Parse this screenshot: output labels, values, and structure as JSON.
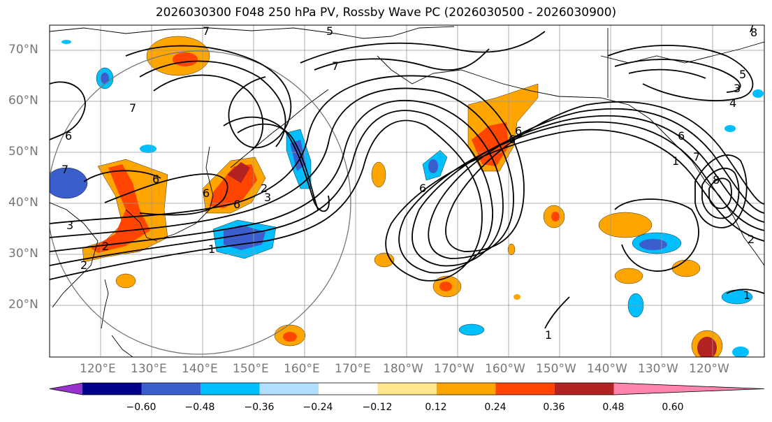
{
  "title": "2026030300 F048 250 hPa PV, Rossby Wave PC (2026030500 - 2026030900)",
  "lat_labels": [
    "70°N",
    "60°N",
    "50°N",
    "40°N",
    "30°N",
    "20°N"
  ],
  "lon_labels": [
    "120°E",
    "130°E",
    "140°E",
    "150°E",
    "160°E",
    "170°E",
    "180°W",
    "170°W",
    "160°W",
    "150°W",
    "140°W",
    "130°W",
    "120°W"
  ],
  "colorbar": {
    "colors": [
      "#9932cc",
      "#00008b",
      "#3a5fcd",
      "#00bfff",
      "#b2dfff",
      "#ffffff",
      "#ffe68a",
      "#ffa500",
      "#ff4500",
      "#b22222",
      "#ff85b0"
    ],
    "tick_labels": [
      "−0.60",
      "−0.48",
      "−0.36",
      "−0.24",
      "−0.12",
      "0.12",
      "0.24",
      "0.36",
      "0.48",
      "0.60"
    ]
  },
  "contour_labels": [
    "5",
    "7",
    "7",
    "6",
    "7",
    "7",
    "6",
    "6",
    "2",
    "3",
    "6",
    "3",
    "2",
    "1",
    "2",
    "3",
    "4",
    "5",
    "6",
    "1",
    "7",
    "8",
    "6",
    "1",
    "2",
    "1",
    "6",
    "7",
    "8",
    "6"
  ]
}
